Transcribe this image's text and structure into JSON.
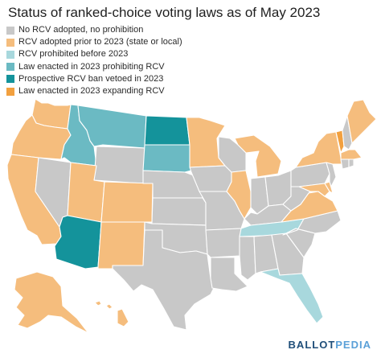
{
  "title": "Status of ranked-choice voting laws as of May 2023",
  "legend": [
    {
      "label": "No RCV adopted, no prohibition",
      "color": "#c8c8c8"
    },
    {
      "label": "RCV adopted prior to 2023 (state or local)",
      "color": "#f5bd7d"
    },
    {
      "label": "RCV prohibited before 2023",
      "color": "#a8d8dd"
    },
    {
      "label": "Law enacted in 2023 prohibiting RCV",
      "color": "#6bbac3"
    },
    {
      "label": "Prospective RCV ban vetoed in 2023",
      "color": "#14939b"
    },
    {
      "label": "Law enacted in 2023 expanding RCV",
      "color": "#f2a03f"
    }
  ],
  "brand": {
    "part1": "BALLOT",
    "part2": "PEDIA"
  },
  "states": {
    "WA": "rcv_prior",
    "OR": "rcv_prior",
    "CA": "rcv_prior",
    "NV": "none",
    "ID": "ban_2023",
    "MT": "ban_2023",
    "WY": "none",
    "UT": "rcv_prior",
    "CO": "rcv_prior",
    "AZ": "veto_2023",
    "NM": "rcv_prior",
    "ND": "veto_2023",
    "SD": "ban_2023",
    "NE": "none",
    "KS": "none",
    "OK": "none",
    "TX": "none",
    "MN": "rcv_prior",
    "IA": "none",
    "MO": "none",
    "AR": "none",
    "LA": "none",
    "WI": "none",
    "IL": "rcv_prior",
    "MI": "rcv_prior",
    "IN": "none",
    "OH": "none",
    "KY": "none",
    "TN": "ban_prior",
    "MS": "none",
    "AL": "none",
    "GA": "none",
    "FL": "ban_prior",
    "SC": "none",
    "NC": "none",
    "VA": "rcv_prior",
    "WV": "none",
    "MD": "rcv_prior",
    "DE": "rcv_prior",
    "PA": "none",
    "NJ": "none",
    "NY": "rcv_prior",
    "VT": "expand_2023",
    "NH": "none",
    "ME": "rcv_prior",
    "MA": "rcv_prior",
    "CT": "none",
    "RI": "none",
    "AK": "rcv_prior",
    "HI": "rcv_prior"
  }
}
